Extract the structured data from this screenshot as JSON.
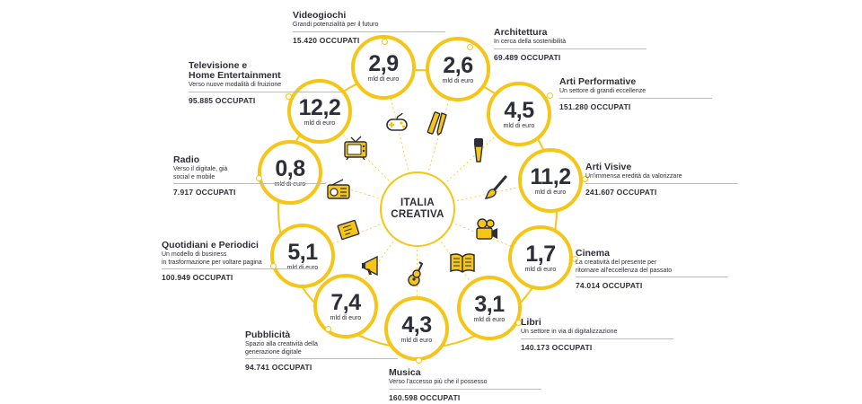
{
  "center": {
    "line1": "ITALIA",
    "line2": "CREATIVA"
  },
  "unit": "mld di euro",
  "sectors": [
    {
      "name": "Videogiochi",
      "desc": [
        "Grandi potenzialità per il futuro"
      ],
      "value": "2,9",
      "jobs": "15.420 OCCUPATI",
      "icon": "gamepad-icon"
    },
    {
      "name": "Architettura",
      "desc": [
        "In cerca della sostenibilità"
      ],
      "value": "2,6",
      "jobs": "69.489 OCCUPATI",
      "icon": "ruler-pencil-icon"
    },
    {
      "name": "Arti Performative",
      "desc": [
        "Un settore di grandi eccellenze"
      ],
      "value": "4,5",
      "jobs": "151.280 OCCUPATI",
      "icon": "microphone-icon"
    },
    {
      "name": "Arti Visive",
      "desc": [
        "Un'immensa eredità da valorizzare"
      ],
      "value": "11,2",
      "jobs": "241.607 OCCUPATI",
      "icon": "paintbrush-icon"
    },
    {
      "name": "Cinema",
      "desc": [
        "La creatività del presente per",
        "ritornare all'eccellenza del passato"
      ],
      "value": "1,7",
      "jobs": "74.014 OCCUPATI",
      "icon": "movie-camera-icon"
    },
    {
      "name": "Libri",
      "desc": [
        "Un settore in via di digitalizzazione"
      ],
      "value": "3,1",
      "jobs": "140.173 OCCUPATI",
      "icon": "open-book-icon"
    },
    {
      "name": "Musica",
      "desc": [
        "Verso l'accesso più che il possesso"
      ],
      "value": "4,3",
      "jobs": "160.598 OCCUPATI",
      "icon": "guitar-icon"
    },
    {
      "name": "Pubblicità",
      "desc": [
        "Spazio alla creatività della",
        "generazione digitale"
      ],
      "value": "7,4",
      "jobs": "94.741 OCCUPATI",
      "icon": "megaphone-icon"
    },
    {
      "name": "Quotidiani e Periodici",
      "desc": [
        "Un modello di business",
        "in trasformazione per voltare pagina"
      ],
      "value": "5,1",
      "jobs": "100.949 OCCUPATI",
      "icon": "newspaper-icon"
    },
    {
      "name": "Radio",
      "desc": [
        "Verso il digitale, già",
        "social e mobile"
      ],
      "value": "0,8",
      "jobs": "7.917 OCCUPATI",
      "icon": "radio-icon"
    },
    {
      "name": "Televisione e",
      "name2": "Home Entertainment",
      "desc": [
        "Verso nuove modalità di fruizione"
      ],
      "value": "12,2",
      "jobs": "95.885 OCCUPATI",
      "icon": "television-icon"
    }
  ],
  "colors": {
    "accent": "#f5c518",
    "text": "#2e2e38"
  }
}
